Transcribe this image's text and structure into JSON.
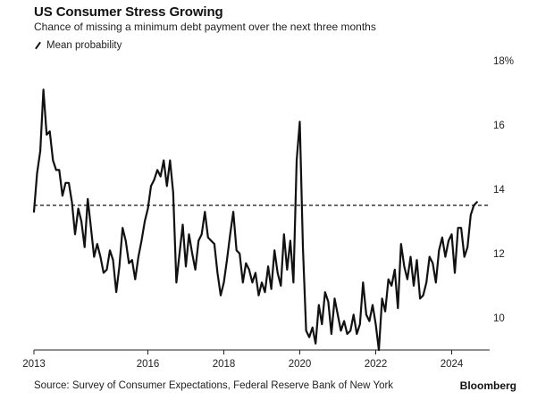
{
  "title": "US Consumer Stress Growing",
  "subtitle": "Chance of missing a minimum debt payment over the next three months",
  "source": "Source: Survey of Consumer Expectations, Federal Reserve Bank of New York",
  "brand": "Bloomberg",
  "colors": {
    "line": "#111111",
    "axis": "#222222",
    "background": "#ffffff"
  },
  "chart_data": {
    "type": "line",
    "title": "US Consumer Stress Growing",
    "subtitle": "Chance of missing a minimum debt payment over the next three months",
    "xlabel": "",
    "ylabel": "",
    "xlim": [
      2013,
      2025
    ],
    "ylim": [
      9,
      18
    ],
    "x_ticks": [
      2013,
      2016,
      2018,
      2020,
      2022,
      2024
    ],
    "y_ticks": [
      10,
      12,
      14,
      16,
      18
    ],
    "y_tick_labels": [
      "10",
      "12",
      "14",
      "16",
      "18%"
    ],
    "grid": false,
    "legend_position": "top-left",
    "reference_line": {
      "name": "Mean probability",
      "value": 13.5,
      "style": "dashed"
    },
    "series": [
      {
        "x": [
          2013.0,
          2013.0833,
          2013.1667,
          2013.25,
          2013.3333,
          2013.4167,
          2013.5,
          2013.5833,
          2013.6667,
          2013.75,
          2013.8333,
          2013.9167,
          2014.0,
          2014.0833,
          2014.1667,
          2014.25,
          2014.3333,
          2014.4167,
          2014.5,
          2014.5833,
          2014.6667,
          2014.75,
          2014.8333,
          2014.9167,
          2015.0,
          2015.0833,
          2015.1667,
          2015.25,
          2015.3333,
          2015.4167,
          2015.5,
          2015.5833,
          2015.6667,
          2015.75,
          2015.8333,
          2015.9167,
          2016.0,
          2016.0833,
          2016.1667,
          2016.25,
          2016.3333,
          2016.4167,
          2016.5,
          2016.5833,
          2016.6667,
          2016.75,
          2016.8333,
          2016.9167,
          2017.0,
          2017.0833,
          2017.1667,
          2017.25,
          2017.3333,
          2017.4167,
          2017.5,
          2017.5833,
          2017.6667,
          2017.75,
          2017.8333,
          2017.9167,
          2018.0,
          2018.0833,
          2018.1667,
          2018.25,
          2018.3333,
          2018.4167,
          2018.5,
          2018.5833,
          2018.6667,
          2018.75,
          2018.8333,
          2018.9167,
          2019.0,
          2019.0833,
          2019.1667,
          2019.25,
          2019.3333,
          2019.4167,
          2019.5,
          2019.5833,
          2019.6667,
          2019.75,
          2019.8333,
          2019.9167,
          2020.0,
          2020.0833,
          2020.1667,
          2020.25,
          2020.3333,
          2020.4167,
          2020.5,
          2020.5833,
          2020.6667,
          2020.75,
          2020.8333,
          2020.9167,
          2021.0,
          2021.0833,
          2021.1667,
          2021.25,
          2021.3333,
          2021.4167,
          2021.5,
          2021.5833,
          2021.6667,
          2021.75,
          2021.8333,
          2021.9167,
          2022.0,
          2022.0833,
          2022.1667,
          2022.25,
          2022.3333,
          2022.4167,
          2022.5,
          2022.5833,
          2022.6667,
          2022.75,
          2022.8333,
          2022.9167,
          2023.0,
          2023.0833,
          2023.1667,
          2023.25,
          2023.3333,
          2023.4167,
          2023.5,
          2023.5833,
          2023.6667,
          2023.75,
          2023.8333,
          2023.9167,
          2024.0,
          2024.0833,
          2024.1667,
          2024.25,
          2024.3333,
          2024.4167,
          2024.5,
          2024.5833,
          2024.6667
        ],
        "values": [
          13.3,
          14.5,
          15.2,
          17.1,
          15.7,
          15.8,
          14.9,
          14.6,
          14.6,
          13.8,
          14.2,
          14.2,
          13.6,
          12.6,
          13.4,
          13.0,
          12.2,
          13.7,
          12.8,
          11.9,
          12.3,
          11.9,
          11.4,
          11.5,
          12.1,
          11.8,
          10.8,
          11.6,
          12.8,
          12.4,
          11.7,
          11.8,
          11.2,
          11.9,
          12.4,
          13.0,
          13.4,
          14.1,
          14.3,
          14.6,
          14.4,
          14.9,
          14.1,
          14.9,
          13.9,
          11.1,
          12.0,
          12.9,
          11.6,
          12.6,
          12.0,
          11.5,
          12.4,
          12.6,
          13.3,
          12.5,
          12.4,
          12.3,
          11.4,
          10.7,
          11.1,
          11.8,
          12.6,
          13.3,
          12.1,
          12.0,
          11.1,
          11.7,
          11.5,
          11.1,
          11.4,
          10.7,
          11.1,
          10.8,
          11.6,
          10.9,
          12.1,
          11.4,
          11.0,
          12.6,
          11.5,
          12.4,
          11.1,
          14.9,
          16.1,
          12.2,
          9.6,
          9.4,
          9.7,
          9.2,
          10.4,
          9.8,
          10.8,
          10.5,
          9.5,
          10.6,
          10.1,
          9.6,
          9.9,
          9.5,
          9.6,
          10.1,
          9.5,
          9.8,
          11.1,
          10.1,
          9.9,
          10.4,
          9.8,
          9.0,
          10.6,
          10.2,
          11.2,
          11.0,
          11.5,
          10.3,
          12.3,
          11.6,
          11.2,
          11.9,
          11.0,
          11.8,
          10.6,
          10.7,
          11.1,
          11.9,
          11.7,
          11.1,
          12.1,
          12.5,
          11.9,
          12.4,
          12.6,
          11.4,
          12.8,
          12.8,
          11.9,
          12.2,
          13.2,
          13.5,
          13.6
        ]
      }
    ]
  }
}
